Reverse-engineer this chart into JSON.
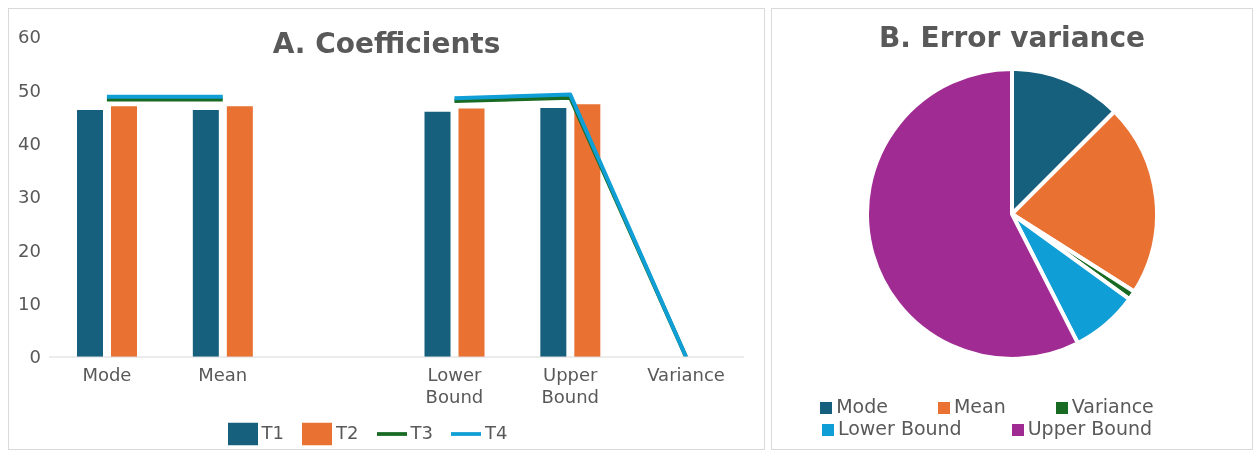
{
  "chart_data": [
    {
      "type": "bar",
      "title": "A. Coefficients",
      "categories": [
        "Mode",
        "Mean",
        null,
        "Lower Bound",
        "Upper Bound",
        "Variance"
      ],
      "series": [
        {
          "name": "T1",
          "color": "#16607e",
          "values": [
            46.3,
            46.3,
            null,
            46,
            46.7,
            0
          ]
        },
        {
          "name": "T2",
          "color": "#e97132",
          "values": [
            47,
            47,
            null,
            46.6,
            47.4,
            0
          ]
        },
        {
          "name": "T3",
          "type": "line",
          "color": "#196b24",
          "values": [
            48.3,
            48.3,
            null,
            48,
            48.6,
            0
          ]
        },
        {
          "name": "T4",
          "type": "line",
          "color": "#0f9ed5",
          "values": [
            48.8,
            48.8,
            null,
            48.5,
            49.2,
            0
          ]
        }
      ],
      "ylim": [
        0,
        60
      ],
      "yticks": [
        0,
        10,
        20,
        30,
        40,
        50,
        60
      ],
      "grid": false,
      "legend": "bottom"
    },
    {
      "type": "pie",
      "title": "B. Error variance",
      "categories": [
        "Mode",
        "Mean",
        "Variance",
        "Lower Bound",
        "Upper Bound"
      ],
      "values": [
        12.5,
        21.5,
        1,
        7.5,
        57.5
      ],
      "colors": [
        "#16607e",
        "#e97132",
        "#196b24",
        "#0f9ed5",
        "#a02b93"
      ],
      "legend": "bottom"
    }
  ]
}
